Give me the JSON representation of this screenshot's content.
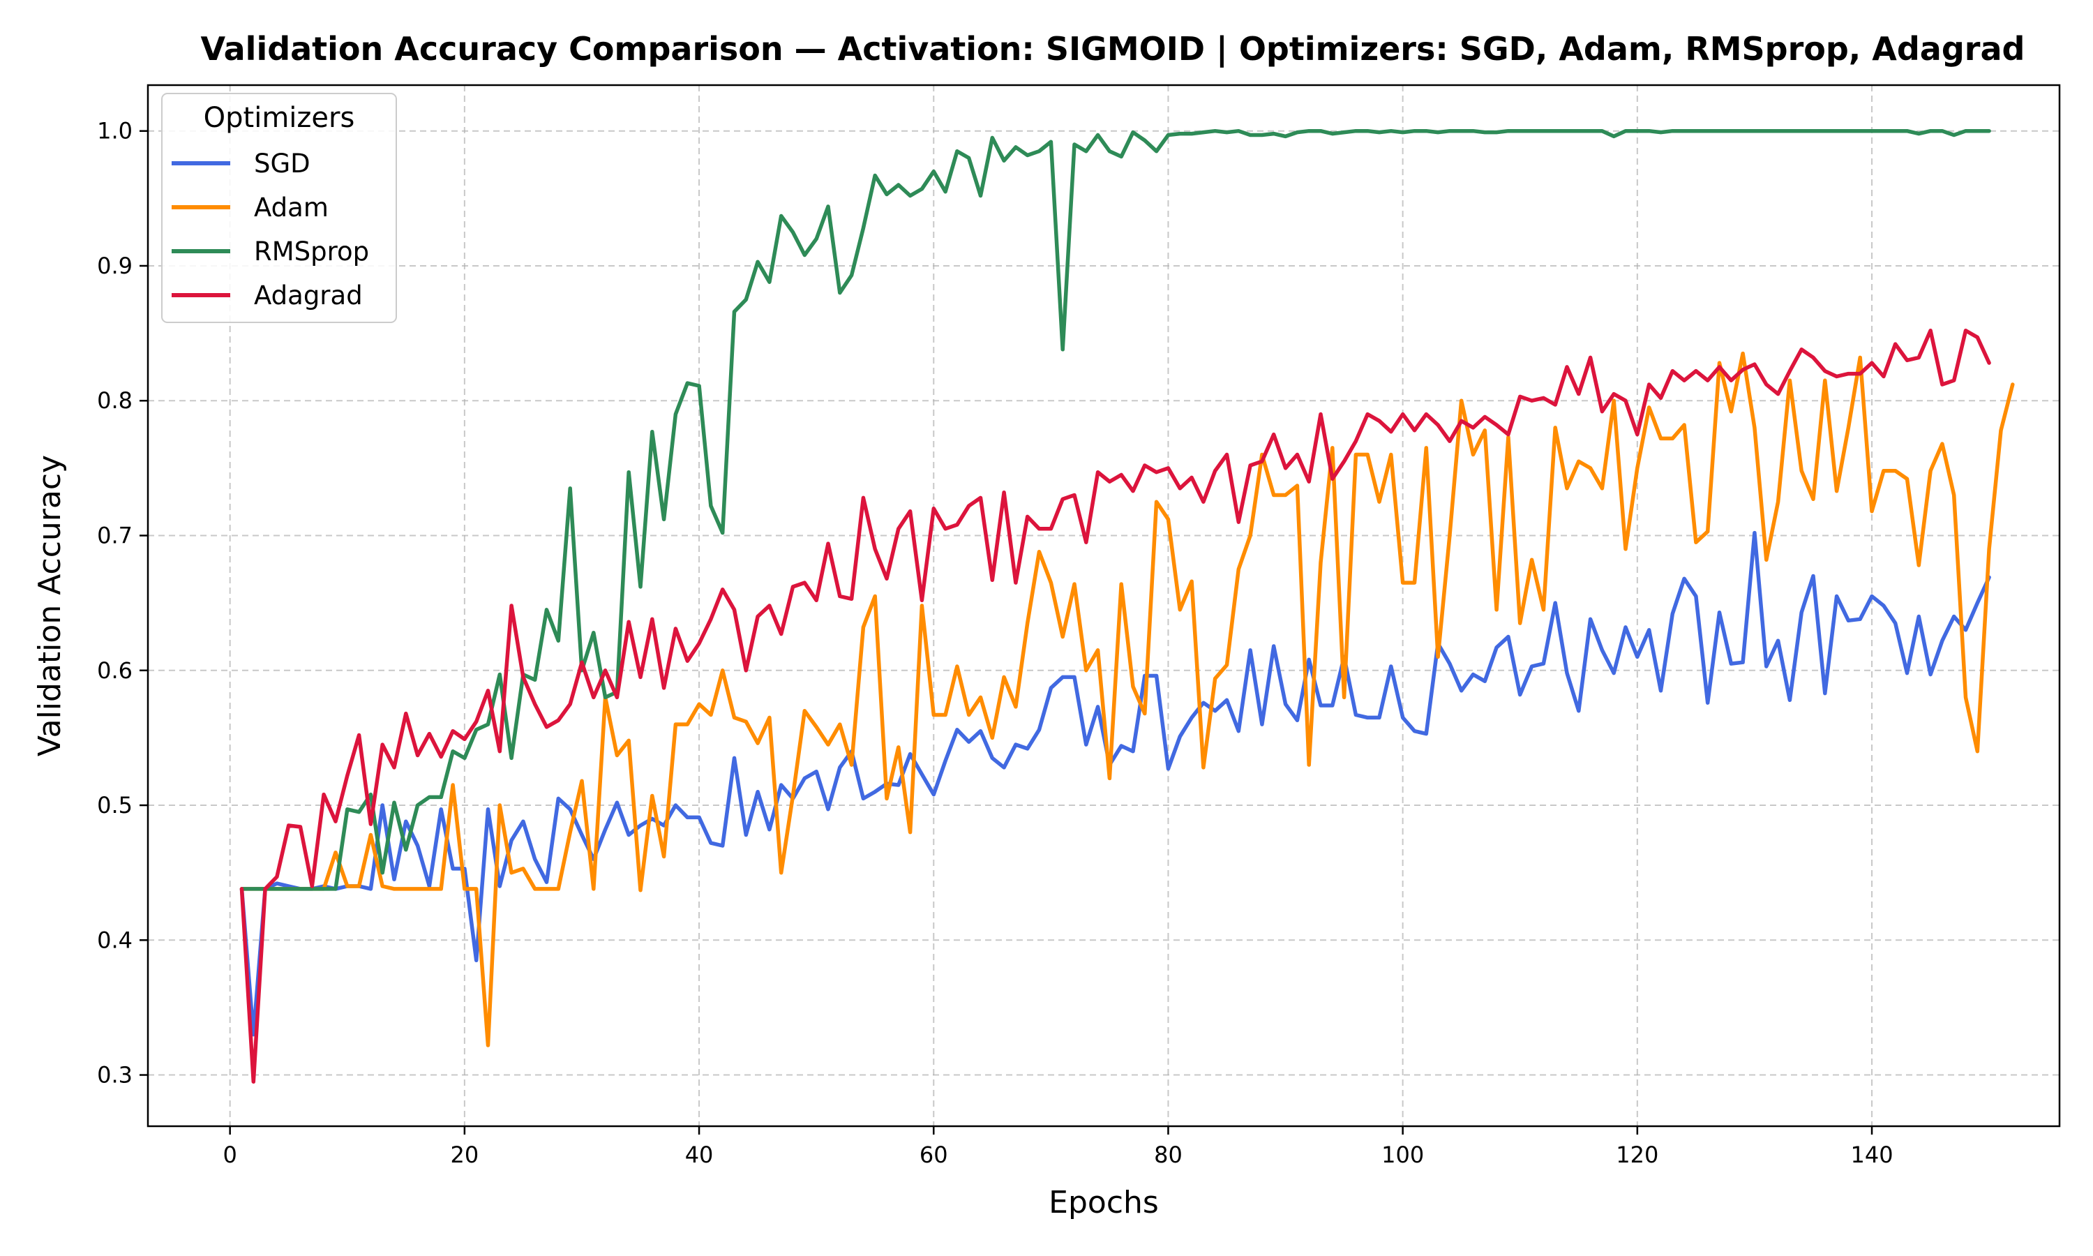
{
  "chart_data": {
    "type": "line",
    "title": "Validation Accuracy Comparison — Activation: SIGMOID | Optimizers: SGD, Adam, RMSprop, Adagrad",
    "xlabel": "Epochs",
    "ylabel": "Validation Accuracy",
    "xlim": [
      -7,
      156
    ],
    "ylim": [
      0.262,
      1.034
    ],
    "xticks": [
      0,
      20,
      40,
      60,
      80,
      100,
      120,
      140
    ],
    "xtick_labels": [
      "0",
      "20",
      "40",
      "60",
      "80",
      "100",
      "120",
      "140"
    ],
    "yticks": [
      0.3,
      0.4,
      0.5,
      0.6,
      0.7,
      0.8,
      0.9,
      1.0
    ],
    "ytick_labels": [
      "0.3",
      "0.4",
      "0.5",
      "0.6",
      "0.7",
      "0.8",
      "0.9",
      "1.0"
    ],
    "grid": true,
    "legend": {
      "title": "Optimizers",
      "placement": "upper-left"
    },
    "x_start": 1,
    "series": [
      {
        "name": "SGD",
        "color": "#4169e1",
        "values": [
          0.438,
          0.33,
          0.438,
          0.442,
          0.44,
          0.438,
          0.438,
          0.44,
          0.438,
          0.44,
          0.44,
          0.438,
          0.5,
          0.445,
          0.488,
          0.47,
          0.44,
          0.497,
          0.453,
          0.453,
          0.385,
          0.497,
          0.44,
          0.474,
          0.488,
          0.46,
          0.443,
          0.505,
          0.497,
          0.478,
          0.46,
          0.482,
          0.502,
          0.478,
          0.485,
          0.49,
          0.485,
          0.5,
          0.491,
          0.491,
          0.472,
          0.47,
          0.535,
          0.478,
          0.51,
          0.482,
          0.515,
          0.505,
          0.52,
          0.525,
          0.497,
          0.528,
          0.54,
          0.505,
          0.51,
          0.516,
          0.515,
          0.538,
          0.523,
          0.508,
          0.533,
          0.556,
          0.547,
          0.555,
          0.535,
          0.528,
          0.545,
          0.542,
          0.556,
          0.587,
          0.595,
          0.595,
          0.545,
          0.573,
          0.53,
          0.544,
          0.54,
          0.596,
          0.596,
          0.527,
          0.551,
          0.565,
          0.576,
          0.57,
          0.578,
          0.555,
          0.615,
          0.56,
          0.618,
          0.575,
          0.563,
          0.608,
          0.574,
          0.574,
          0.61,
          0.567,
          0.565,
          0.565,
          0.603,
          0.565,
          0.555,
          0.553,
          0.62,
          0.605,
          0.585,
          0.597,
          0.592,
          0.617,
          0.625,
          0.582,
          0.603,
          0.605,
          0.65,
          0.598,
          0.57,
          0.638,
          0.615,
          0.598,
          0.632,
          0.61,
          0.63,
          0.585,
          0.642,
          0.668,
          0.655,
          0.576,
          0.643,
          0.605,
          0.606,
          0.702,
          0.603,
          0.622,
          0.578,
          0.643,
          0.67,
          0.583,
          0.655,
          0.637,
          0.638,
          0.655,
          0.648,
          0.635,
          0.598,
          0.64,
          0.597,
          0.622,
          0.64,
          0.63,
          0.65,
          0.669
        ]
      },
      {
        "name": "Adam",
        "color": "#ff8c00",
        "values": [
          0.438,
          0.438,
          0.438,
          0.438,
          0.438,
          0.438,
          0.438,
          0.438,
          0.465,
          0.44,
          0.44,
          0.478,
          0.44,
          0.438,
          0.438,
          0.438,
          0.438,
          0.438,
          0.515,
          0.438,
          0.438,
          0.322,
          0.5,
          0.45,
          0.453,
          0.438,
          0.438,
          0.438,
          0.48,
          0.518,
          0.438,
          0.58,
          0.537,
          0.548,
          0.437,
          0.507,
          0.462,
          0.56,
          0.56,
          0.575,
          0.567,
          0.6,
          0.565,
          0.562,
          0.546,
          0.565,
          0.45,
          0.507,
          0.57,
          0.558,
          0.545,
          0.56,
          0.53,
          0.632,
          0.655,
          0.505,
          0.543,
          0.48,
          0.648,
          0.567,
          0.567,
          0.603,
          0.567,
          0.58,
          0.55,
          0.595,
          0.573,
          0.635,
          0.688,
          0.665,
          0.625,
          0.664,
          0.6,
          0.615,
          0.52,
          0.664,
          0.588,
          0.568,
          0.725,
          0.712,
          0.645,
          0.666,
          0.528,
          0.594,
          0.604,
          0.675,
          0.7,
          0.76,
          0.73,
          0.73,
          0.737,
          0.53,
          0.68,
          0.765,
          0.58,
          0.76,
          0.76,
          0.725,
          0.76,
          0.665,
          0.665,
          0.765,
          0.61,
          0.7,
          0.8,
          0.76,
          0.778,
          0.645,
          0.773,
          0.635,
          0.682,
          0.645,
          0.78,
          0.735,
          0.755,
          0.75,
          0.735,
          0.8,
          0.69,
          0.75,
          0.795,
          0.772,
          0.772,
          0.782,
          0.695,
          0.703,
          0.828,
          0.792,
          0.835,
          0.78,
          0.682,
          0.725,
          0.815,
          0.748,
          0.727,
          0.815,
          0.733,
          0.78,
          0.832,
          0.718,
          0.748,
          0.748,
          0.742,
          0.678,
          0.748,
          0.768,
          0.73,
          0.58,
          0.54,
          0.69,
          0.778,
          0.812
        ]
      },
      {
        "name": "RMSprop",
        "color": "#2e8b57",
        "values": [
          0.438,
          0.438,
          0.438,
          0.438,
          0.438,
          0.438,
          0.438,
          0.438,
          0.438,
          0.497,
          0.495,
          0.508,
          0.45,
          0.502,
          0.467,
          0.5,
          0.506,
          0.506,
          0.54,
          0.535,
          0.556,
          0.56,
          0.597,
          0.535,
          0.597,
          0.593,
          0.645,
          0.622,
          0.735,
          0.6,
          0.628,
          0.58,
          0.584,
          0.747,
          0.662,
          0.777,
          0.712,
          0.79,
          0.813,
          0.811,
          0.722,
          0.702,
          0.866,
          0.875,
          0.903,
          0.888,
          0.937,
          0.925,
          0.908,
          0.92,
          0.944,
          0.88,
          0.893,
          0.928,
          0.967,
          0.953,
          0.96,
          0.952,
          0.957,
          0.97,
          0.955,
          0.985,
          0.98,
          0.952,
          0.995,
          0.978,
          0.988,
          0.982,
          0.985,
          0.992,
          0.838,
          0.99,
          0.985,
          0.997,
          0.985,
          0.981,
          0.999,
          0.993,
          0.985,
          0.997,
          0.998,
          0.998,
          0.999,
          1.0,
          0.999,
          1.0,
          0.997,
          0.997,
          0.998,
          0.996,
          0.999,
          1.0,
          1.0,
          0.998,
          0.999,
          1.0,
          1.0,
          0.999,
          1.0,
          0.999,
          1.0,
          1.0,
          0.999,
          1.0,
          1.0,
          1.0,
          0.999,
          0.999,
          1.0,
          1.0,
          1.0,
          1.0,
          1.0,
          1.0,
          1.0,
          1.0,
          1.0,
          0.996,
          1.0,
          1.0,
          1.0,
          0.999,
          1.0,
          1.0,
          1.0,
          1.0,
          1.0,
          1.0,
          1.0,
          1.0,
          1.0,
          1.0,
          1.0,
          1.0,
          1.0,
          1.0,
          1.0,
          1.0,
          1.0,
          1.0,
          1.0,
          1.0,
          1.0,
          0.998,
          1.0,
          1.0,
          0.997,
          1.0,
          1.0,
          1.0
        ]
      },
      {
        "name": "Adagrad",
        "color": "#dc143c",
        "values": [
          0.438,
          0.295,
          0.438,
          0.447,
          0.485,
          0.484,
          0.44,
          0.508,
          0.488,
          0.522,
          0.552,
          0.486,
          0.545,
          0.528,
          0.568,
          0.537,
          0.553,
          0.536,
          0.555,
          0.549,
          0.562,
          0.585,
          0.54,
          0.648,
          0.595,
          0.575,
          0.558,
          0.563,
          0.575,
          0.606,
          0.58,
          0.6,
          0.58,
          0.636,
          0.595,
          0.638,
          0.587,
          0.631,
          0.607,
          0.62,
          0.638,
          0.66,
          0.645,
          0.6,
          0.64,
          0.648,
          0.627,
          0.662,
          0.665,
          0.652,
          0.694,
          0.655,
          0.653,
          0.728,
          0.69,
          0.668,
          0.705,
          0.718,
          0.652,
          0.72,
          0.705,
          0.708,
          0.722,
          0.728,
          0.667,
          0.732,
          0.665,
          0.714,
          0.705,
          0.705,
          0.727,
          0.73,
          0.695,
          0.747,
          0.74,
          0.745,
          0.733,
          0.752,
          0.747,
          0.75,
          0.735,
          0.743,
          0.725,
          0.748,
          0.76,
          0.71,
          0.752,
          0.755,
          0.775,
          0.75,
          0.76,
          0.74,
          0.79,
          0.742,
          0.755,
          0.77,
          0.79,
          0.785,
          0.777,
          0.79,
          0.778,
          0.79,
          0.782,
          0.77,
          0.785,
          0.78,
          0.788,
          0.782,
          0.775,
          0.803,
          0.8,
          0.802,
          0.797,
          0.825,
          0.805,
          0.832,
          0.792,
          0.805,
          0.8,
          0.775,
          0.812,
          0.802,
          0.822,
          0.815,
          0.822,
          0.815,
          0.825,
          0.815,
          0.823,
          0.827,
          0.812,
          0.805,
          0.822,
          0.838,
          0.832,
          0.822,
          0.818,
          0.82,
          0.82,
          0.828,
          0.818,
          0.842,
          0.83,
          0.832,
          0.852,
          0.812,
          0.815,
          0.852,
          0.847,
          0.828
        ]
      }
    ]
  }
}
